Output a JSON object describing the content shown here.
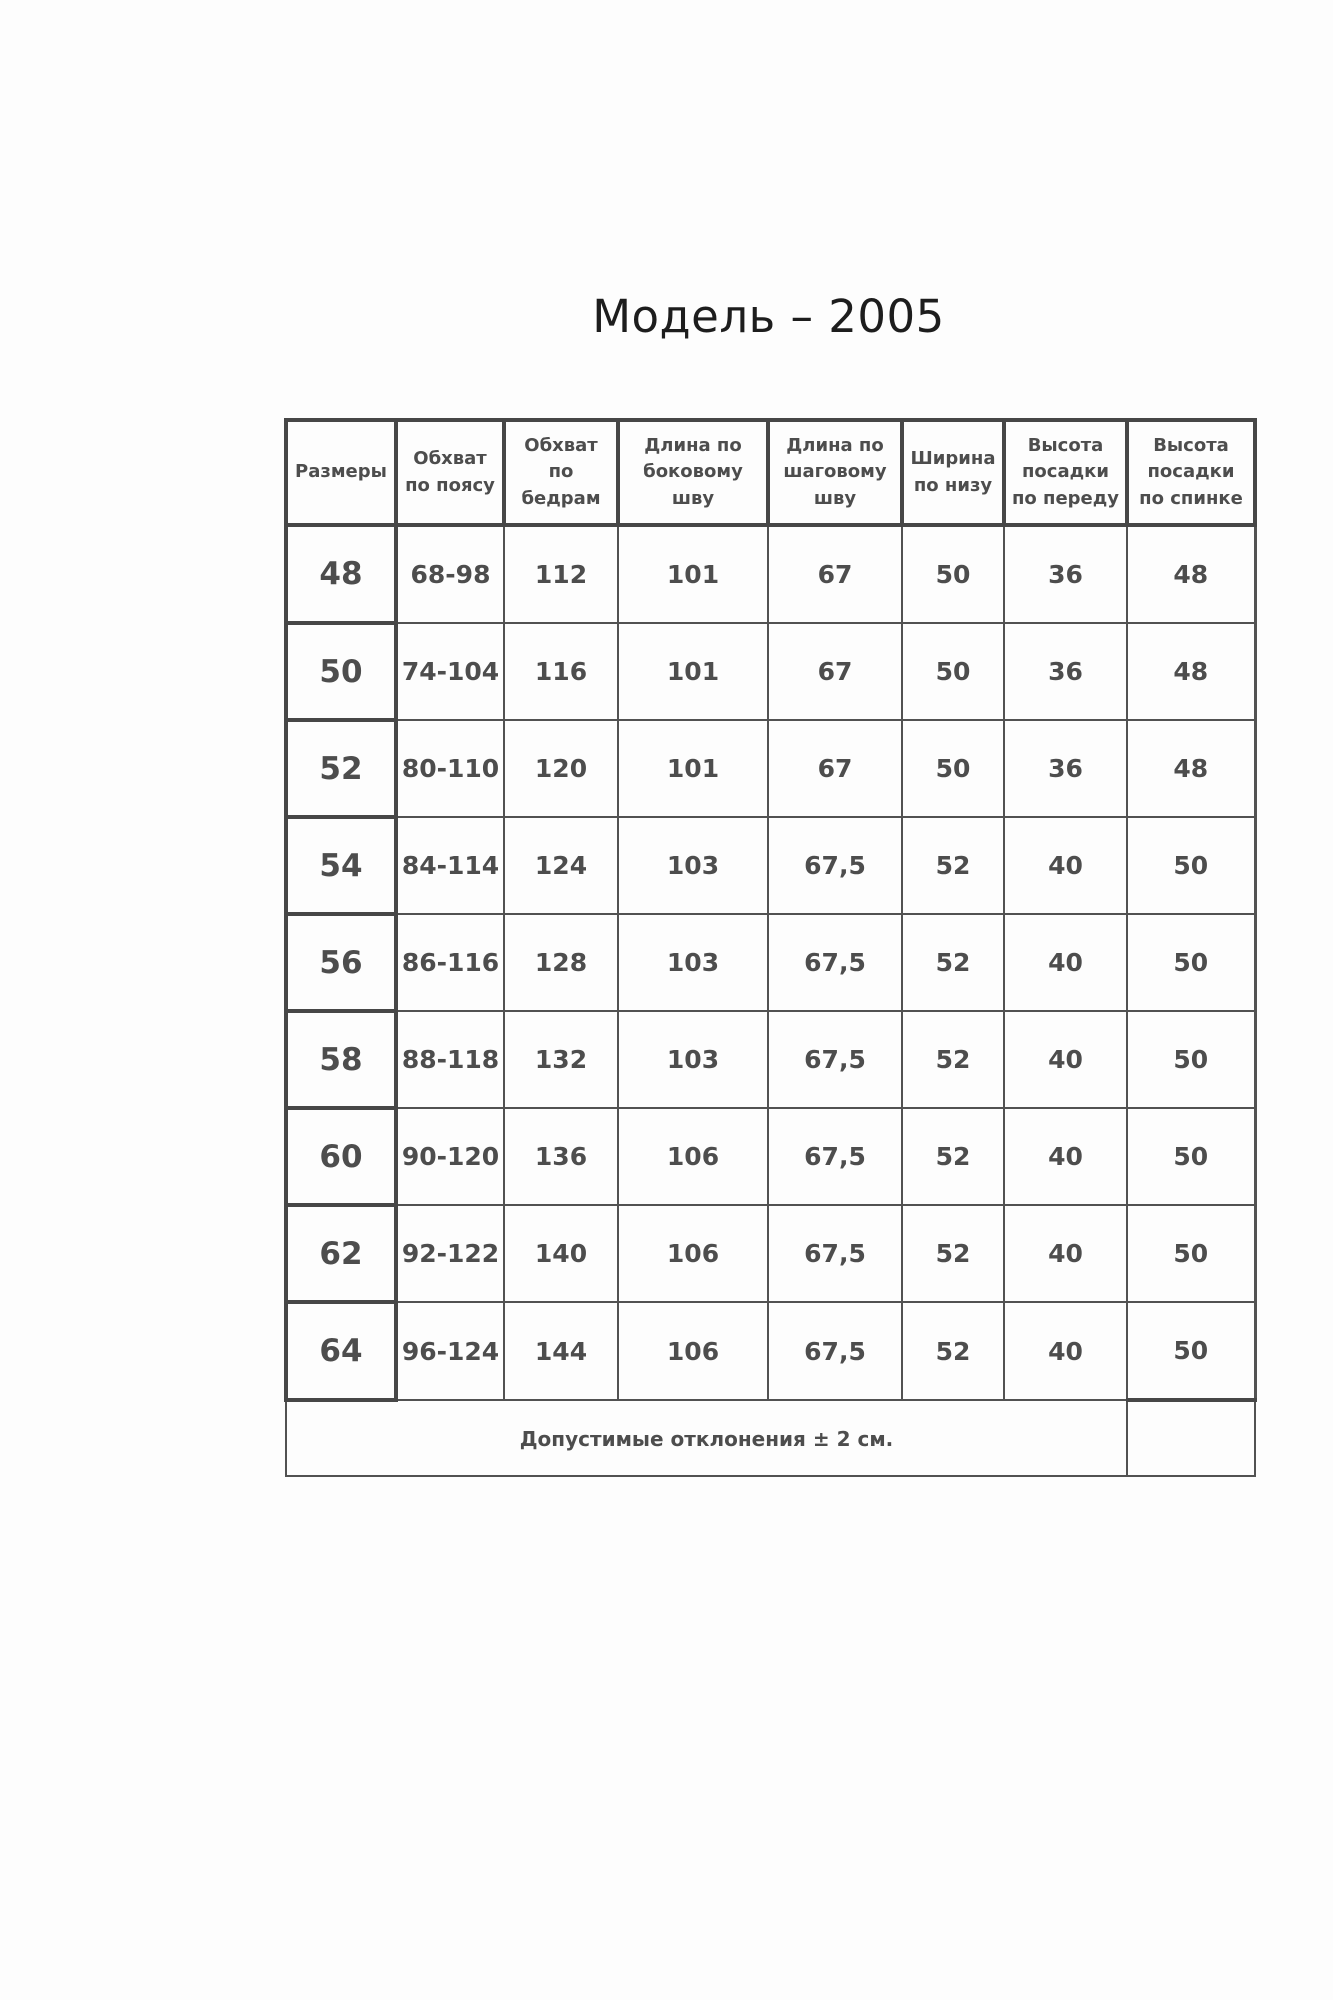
{
  "title": "Модель – 2005",
  "table": {
    "column_headers": [
      "Размеры",
      "Обхват по поясу",
      "Обхват по бедрам",
      "Длина по боковому шву",
      "Длина по шаговому шву",
      "Ширина по низу",
      "Высота посадки по переду",
      "Высота посадки по спинке"
    ],
    "rows": [
      [
        "48",
        "68-98",
        "112",
        "101",
        "67",
        "50",
        "36",
        "48"
      ],
      [
        "50",
        "74-104",
        "116",
        "101",
        "67",
        "50",
        "36",
        "48"
      ],
      [
        "52",
        "80-110",
        "120",
        "101",
        "67",
        "50",
        "36",
        "48"
      ],
      [
        "54",
        "84-114",
        "124",
        "103",
        "67,5",
        "52",
        "40",
        "50"
      ],
      [
        "56",
        "86-116",
        "128",
        "103",
        "67,5",
        "52",
        "40",
        "50"
      ],
      [
        "58",
        "88-118",
        "132",
        "103",
        "67,5",
        "52",
        "40",
        "50"
      ],
      [
        "60",
        "90-120",
        "136",
        "106",
        "67,5",
        "52",
        "40",
        "50"
      ],
      [
        "62",
        "92-122",
        "140",
        "106",
        "67,5",
        "52",
        "40",
        "50"
      ],
      [
        "64",
        "96-124",
        "144",
        "106",
        "67,5",
        "52",
        "40",
        "50"
      ]
    ],
    "footer_note": "Допустимые отклонения ± 2 см."
  },
  "colors": {
    "background": "#fdfdfd",
    "border_thick": "#474747",
    "border_thin": "#525252",
    "text": "#4d4d4d",
    "title_text": "#1d1d1d"
  }
}
